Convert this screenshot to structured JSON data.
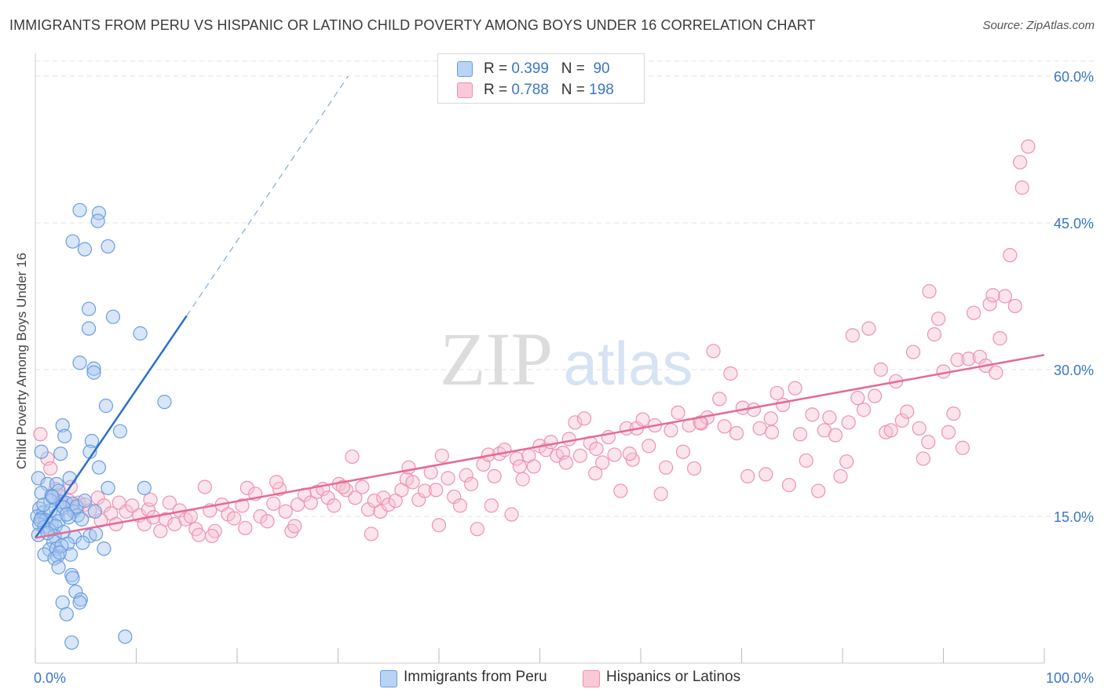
{
  "title": "IMMIGRANTS FROM PERU VS HISPANIC OR LATINO CHILD POVERTY AMONG BOYS UNDER 16 CORRELATION CHART",
  "source": "Source: ZipAtlas.com",
  "watermark": {
    "zip": "ZIP",
    "atlas": "atlas"
  },
  "legend": {
    "r_label": "R =",
    "n_label": "N =",
    "rows": [
      {
        "r": "0.399",
        "n": "90",
        "color": "#6aa0e0"
      },
      {
        "r": "0.788",
        "n": "198",
        "color": "#f3a7bf"
      }
    ]
  },
  "bottom_legend": [
    "Immigrants from Peru",
    "Hispanics or Latinos"
  ],
  "colors": {
    "blue_fill": "#a9c8f0",
    "blue_stroke": "#6b9de0",
    "blue_line": "#2b6fd0",
    "pink_fill": "#f7c4d3",
    "pink_stroke": "#ec93b0",
    "pink_line": "#e46a95",
    "axis_text": "#3a76c9",
    "grid": "#e3e3e3"
  },
  "chart_data": {
    "type": "scatter",
    "title": "IMMIGRANTS FROM PERU VS HISPANIC OR LATINO CHILD POVERTY AMONG BOYS UNDER 16 CORRELATION CHART",
    "xlabel": "",
    "ylabel": "Child Poverty Among Boys Under 16",
    "xlim": [
      0,
      100
    ],
    "ylim": [
      0,
      63
    ],
    "x_tick_labels": [
      "0.0%",
      "100.0%"
    ],
    "y_ticks": [
      15,
      30,
      45,
      60
    ],
    "y_tick_labels": [
      "15.0%",
      "30.0%",
      "45.0%",
      "60.0%"
    ],
    "grid": true,
    "legend_position": "top-center",
    "series": [
      {
        "name": "Immigrants from Peru",
        "r": 0.399,
        "n": 90,
        "trend": {
          "x0": 0,
          "y0": 12.8,
          "x1": 15,
          "y1": 35.5,
          "dashed_to_x": 31,
          "dashed_to_y": 60
        },
        "points": [
          [
            4.4,
            46.3
          ],
          [
            6.3,
            46.0
          ],
          [
            6.2,
            45.2
          ],
          [
            3.7,
            43.1
          ],
          [
            4.9,
            42.3
          ],
          [
            7.2,
            42.6
          ],
          [
            5.3,
            36.2
          ],
          [
            7.7,
            35.4
          ],
          [
            5.3,
            34.2
          ],
          [
            10.4,
            33.7
          ],
          [
            4.4,
            30.7
          ],
          [
            5.8,
            30.1
          ],
          [
            5.8,
            29.7
          ],
          [
            12.8,
            26.7
          ],
          [
            7.0,
            26.3
          ],
          [
            8.4,
            23.7
          ],
          [
            2.7,
            24.3
          ],
          [
            2.9,
            23.2
          ],
          [
            5.6,
            22.7
          ],
          [
            5.4,
            21.6
          ],
          [
            2.5,
            21.4
          ],
          [
            0.6,
            21.6
          ],
          [
            6.3,
            20.0
          ],
          [
            3.4,
            18.9
          ],
          [
            0.3,
            18.9
          ],
          [
            1.2,
            18.3
          ],
          [
            2.1,
            18.3
          ],
          [
            2.3,
            17.6
          ],
          [
            7.2,
            17.9
          ],
          [
            10.8,
            17.9
          ],
          [
            0.6,
            17.4
          ],
          [
            1.6,
            17.1
          ],
          [
            2.6,
            16.5
          ],
          [
            3.0,
            16.4
          ],
          [
            3.7,
            16.3
          ],
          [
            1.5,
            16.6
          ],
          [
            0.4,
            15.8
          ],
          [
            0.8,
            15.4
          ],
          [
            1.5,
            15.6
          ],
          [
            2.2,
            15.2
          ],
          [
            2.8,
            15.9
          ],
          [
            3.8,
            15.5
          ],
          [
            4.2,
            15.1
          ],
          [
            5.9,
            15.5
          ],
          [
            0.2,
            15.0
          ],
          [
            0.6,
            14.8
          ],
          [
            1.0,
            14.6
          ],
          [
            1.6,
            14.3
          ],
          [
            0.4,
            14.2
          ],
          [
            2.3,
            14.5
          ],
          [
            3.3,
            14.9
          ],
          [
            4.6,
            14.7
          ],
          [
            0.9,
            13.9
          ],
          [
            1.4,
            13.6
          ],
          [
            2.0,
            14.0
          ],
          [
            2.8,
            13.4
          ],
          [
            0.3,
            13.1
          ],
          [
            1.9,
            13.0
          ],
          [
            3.9,
            12.9
          ],
          [
            5.4,
            13.0
          ],
          [
            6.0,
            13.2
          ],
          [
            1.8,
            12.4
          ],
          [
            3.2,
            12.2
          ],
          [
            4.7,
            12.3
          ],
          [
            1.4,
            11.6
          ],
          [
            2.1,
            11.7
          ],
          [
            0.9,
            11.1
          ],
          [
            2.2,
            10.9
          ],
          [
            3.5,
            11.1
          ],
          [
            6.8,
            11.7
          ],
          [
            1.9,
            10.7
          ],
          [
            2.3,
            9.8
          ],
          [
            3.6,
            9.0
          ],
          [
            3.7,
            8.7
          ],
          [
            4.0,
            7.3
          ],
          [
            4.5,
            6.5
          ],
          [
            4.4,
            6.2
          ],
          [
            2.7,
            6.2
          ],
          [
            3.1,
            5.0
          ],
          [
            8.9,
            2.7
          ],
          [
            3.6,
            2.1
          ],
          [
            4.1,
            16.0
          ],
          [
            1.2,
            13.3
          ],
          [
            2.6,
            12.0
          ],
          [
            0.8,
            16.2
          ],
          [
            4.9,
            16.6
          ],
          [
            1.7,
            17.0
          ],
          [
            3.1,
            15.2
          ],
          [
            0.5,
            14.6
          ],
          [
            2.4,
            11.3
          ]
        ]
      },
      {
        "name": "Hispanics or Latinos",
        "r": 0.788,
        "n": 198,
        "trend": {
          "x0": 0,
          "y0": 12.8,
          "x1": 100,
          "y1": 31.5
        },
        "points": [
          [
            0.5,
            23.4
          ],
          [
            1.2,
            20.9
          ],
          [
            1.5,
            19.9
          ],
          [
            2.0,
            17.8
          ],
          [
            2.7,
            16.1
          ],
          [
            3.3,
            16.6
          ],
          [
            3.7,
            15.8
          ],
          [
            4.3,
            16.4
          ],
          [
            4.9,
            16.2
          ],
          [
            5.4,
            15.6
          ],
          [
            6.2,
            16.9
          ],
          [
            6.8,
            16.1
          ],
          [
            7.5,
            15.3
          ],
          [
            8.0,
            14.2
          ],
          [
            8.3,
            16.4
          ],
          [
            9.0,
            15.5
          ],
          [
            9.6,
            16.1
          ],
          [
            10.3,
            15.1
          ],
          [
            10.8,
            14.2
          ],
          [
            11.2,
            15.7
          ],
          [
            11.7,
            14.9
          ],
          [
            12.4,
            13.5
          ],
          [
            12.9,
            14.7
          ],
          [
            13.3,
            16.4
          ],
          [
            13.8,
            14.2
          ],
          [
            14.3,
            15.6
          ],
          [
            14.9,
            14.7
          ],
          [
            15.4,
            15.0
          ],
          [
            15.9,
            13.7
          ],
          [
            16.2,
            13.1
          ],
          [
            16.8,
            18.0
          ],
          [
            17.3,
            15.6
          ],
          [
            17.8,
            13.5
          ],
          [
            18.5,
            16.2
          ],
          [
            19.1,
            15.2
          ],
          [
            19.7,
            14.8
          ],
          [
            20.5,
            16.1
          ],
          [
            21.0,
            17.9
          ],
          [
            21.8,
            17.3
          ],
          [
            22.3,
            15.0
          ],
          [
            23.0,
            14.5
          ],
          [
            23.6,
            16.3
          ],
          [
            24.2,
            17.8
          ],
          [
            24.8,
            15.5
          ],
          [
            25.4,
            13.5
          ],
          [
            26.0,
            16.2
          ],
          [
            26.7,
            17.2
          ],
          [
            27.3,
            16.4
          ],
          [
            27.9,
            17.5
          ],
          [
            28.5,
            17.8
          ],
          [
            29.0,
            16.9
          ],
          [
            29.6,
            16.1
          ],
          [
            30.1,
            18.3
          ],
          [
            30.8,
            17.7
          ],
          [
            31.4,
            21.1
          ],
          [
            31.7,
            16.9
          ],
          [
            32.4,
            18.0
          ],
          [
            33.0,
            15.7
          ],
          [
            33.6,
            16.6
          ],
          [
            34.2,
            15.5
          ],
          [
            34.5,
            16.9
          ],
          [
            35.0,
            16.2
          ],
          [
            35.7,
            16.6
          ],
          [
            36.3,
            17.7
          ],
          [
            36.8,
            18.8
          ],
          [
            37.4,
            18.5
          ],
          [
            38.0,
            16.7
          ],
          [
            38.6,
            17.6
          ],
          [
            39.2,
            19.5
          ],
          [
            39.7,
            17.7
          ],
          [
            40.3,
            21.2
          ],
          [
            40.9,
            18.9
          ],
          [
            41.5,
            17.0
          ],
          [
            42.1,
            16.1
          ],
          [
            42.7,
            19.2
          ],
          [
            43.2,
            18.3
          ],
          [
            43.8,
            13.7
          ],
          [
            44.4,
            20.3
          ],
          [
            44.9,
            21.3
          ],
          [
            45.5,
            19.1
          ],
          [
            46.0,
            21.4
          ],
          [
            46.5,
            21.8
          ],
          [
            47.2,
            15.2
          ],
          [
            47.7,
            20.9
          ],
          [
            48.3,
            18.8
          ],
          [
            48.9,
            21.2
          ],
          [
            49.4,
            20.1
          ],
          [
            50.0,
            22.2
          ],
          [
            50.6,
            21.8
          ],
          [
            51.1,
            22.6
          ],
          [
            51.7,
            21.2
          ],
          [
            52.3,
            21.5
          ],
          [
            52.9,
            22.9
          ],
          [
            53.5,
            24.6
          ],
          [
            54.0,
            21.2
          ],
          [
            54.4,
            25.0
          ],
          [
            55.0,
            22.5
          ],
          [
            55.6,
            21.9
          ],
          [
            56.2,
            20.5
          ],
          [
            56.8,
            23.1
          ],
          [
            57.4,
            21.3
          ],
          [
            58.0,
            17.6
          ],
          [
            58.6,
            24.0
          ],
          [
            59.2,
            20.8
          ],
          [
            59.6,
            24.0
          ],
          [
            60.2,
            24.9
          ],
          [
            60.8,
            22.2
          ],
          [
            61.4,
            24.3
          ],
          [
            62.0,
            17.3
          ],
          [
            62.5,
            20.0
          ],
          [
            63.0,
            23.8
          ],
          [
            63.7,
            25.6
          ],
          [
            64.2,
            21.6
          ],
          [
            64.8,
            24.3
          ],
          [
            65.3,
            19.9
          ],
          [
            66.0,
            24.5
          ],
          [
            66.6,
            25.1
          ],
          [
            67.2,
            31.9
          ],
          [
            67.8,
            27.0
          ],
          [
            68.3,
            24.2
          ],
          [
            68.9,
            29.6
          ],
          [
            69.5,
            23.5
          ],
          [
            70.1,
            26.1
          ],
          [
            70.6,
            19.1
          ],
          [
            71.2,
            25.9
          ],
          [
            71.8,
            24.0
          ],
          [
            72.4,
            19.3
          ],
          [
            73.0,
            23.6
          ],
          [
            73.5,
            27.6
          ],
          [
            74.1,
            26.4
          ],
          [
            74.7,
            18.2
          ],
          [
            75.3,
            28.1
          ],
          [
            75.8,
            23.4
          ],
          [
            76.4,
            20.7
          ],
          [
            77.0,
            25.4
          ],
          [
            77.6,
            17.6
          ],
          [
            78.2,
            23.8
          ],
          [
            78.7,
            25.1
          ],
          [
            79.3,
            23.3
          ],
          [
            79.8,
            19.1
          ],
          [
            80.4,
            20.6
          ],
          [
            81.0,
            33.5
          ],
          [
            81.5,
            27.1
          ],
          [
            82.1,
            25.9
          ],
          [
            82.6,
            34.2
          ],
          [
            83.2,
            27.3
          ],
          [
            83.8,
            30.0
          ],
          [
            84.3,
            23.6
          ],
          [
            84.8,
            23.8
          ],
          [
            85.3,
            28.8
          ],
          [
            85.9,
            24.8
          ],
          [
            86.4,
            25.7
          ],
          [
            87.0,
            31.8
          ],
          [
            87.6,
            24.0
          ],
          [
            88.0,
            20.9
          ],
          [
            88.5,
            22.6
          ],
          [
            89.1,
            33.6
          ],
          [
            89.5,
            35.2
          ],
          [
            90.0,
            29.8
          ],
          [
            90.5,
            23.6
          ],
          [
            91.0,
            25.5
          ],
          [
            91.4,
            31.0
          ],
          [
            91.9,
            22.0
          ],
          [
            92.5,
            31.1
          ],
          [
            93.0,
            35.8
          ],
          [
            93.6,
            31.3
          ],
          [
            94.2,
            30.4
          ],
          [
            94.6,
            36.7
          ],
          [
            95.2,
            29.7
          ],
          [
            95.6,
            33.2
          ],
          [
            96.1,
            37.5
          ],
          [
            96.6,
            41.7
          ],
          [
            97.1,
            36.5
          ],
          [
            97.6,
            51.2
          ],
          [
            97.8,
            48.6
          ],
          [
            98.4,
            52.8
          ],
          [
            88.6,
            38.0
          ],
          [
            94.9,
            37.6
          ],
          [
            80.6,
            24.6
          ],
          [
            72.9,
            25.0
          ],
          [
            65.9,
            24.6
          ],
          [
            58.9,
            21.4
          ],
          [
            52.6,
            20.5
          ],
          [
            45.2,
            16.1
          ],
          [
            37.0,
            20.0
          ],
          [
            30.5,
            18.0
          ],
          [
            23.9,
            18.5
          ],
          [
            17.5,
            13.0
          ],
          [
            11.4,
            16.7
          ],
          [
            6.5,
            14.6
          ],
          [
            3.5,
            18.0
          ],
          [
            2.3,
            17.2
          ],
          [
            25.7,
            14.0
          ],
          [
            20.8,
            13.8
          ],
          [
            33.3,
            13.2
          ],
          [
            40.0,
            14.1
          ],
          [
            48.0,
            20.1
          ],
          [
            55.5,
            19.4
          ]
        ]
      }
    ]
  }
}
